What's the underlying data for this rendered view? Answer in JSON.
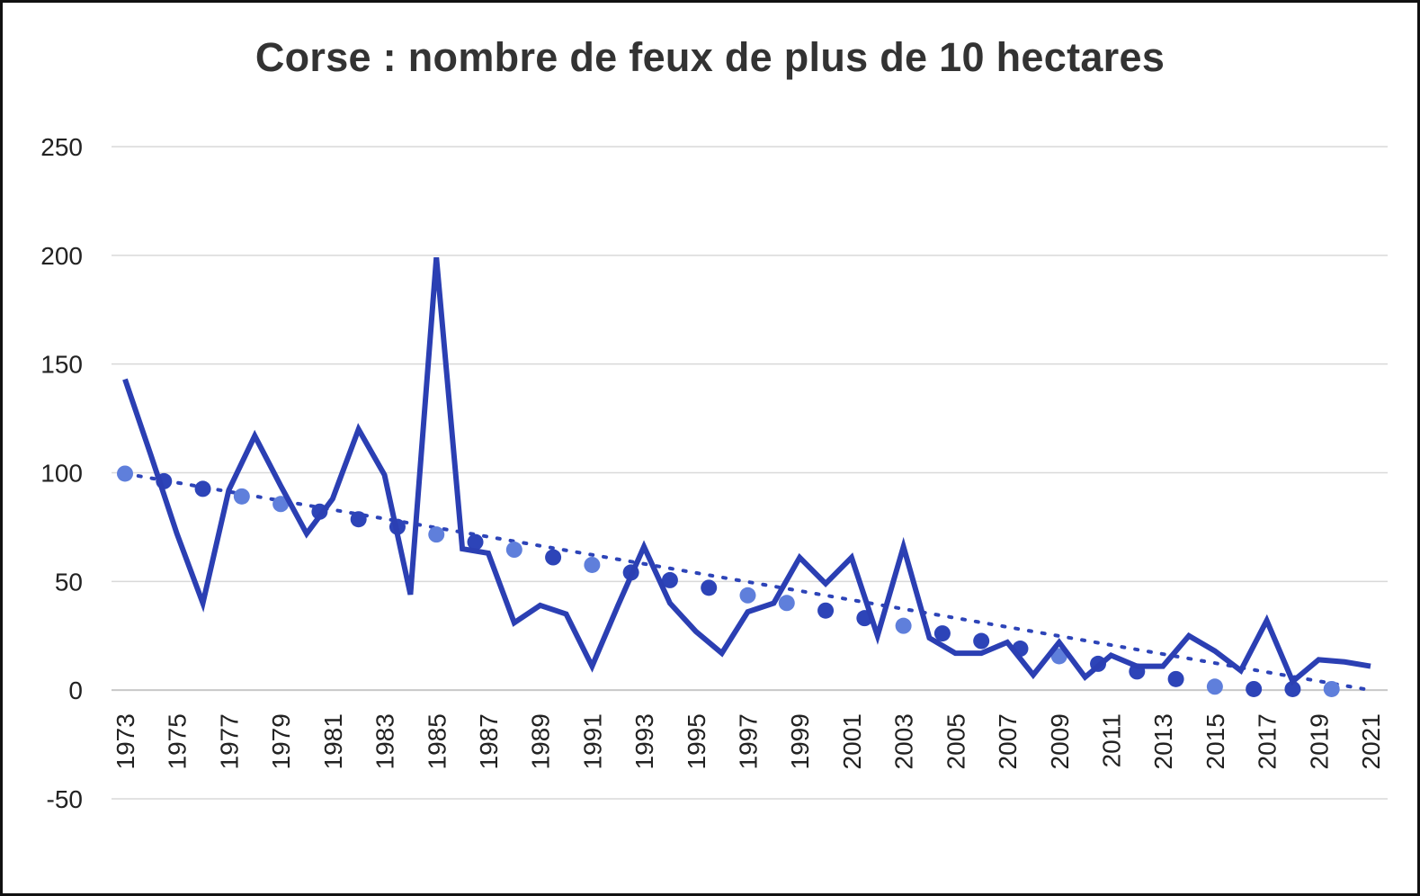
{
  "chart_data": {
    "type": "line",
    "title": "Corse : nombre de feux de plus de 10 hectares",
    "xlabel": "",
    "ylabel": "",
    "ylim": [
      -50,
      250
    ],
    "yticks": [
      -50,
      0,
      50,
      100,
      150,
      200,
      250
    ],
    "xlim": [
      1973,
      2021
    ],
    "xtick_labels": [
      "1973",
      "1975",
      "1977",
      "1979",
      "1981",
      "1983",
      "1985",
      "1987",
      "1989",
      "1991",
      "1993",
      "1995",
      "1997",
      "1999",
      "2001",
      "2003",
      "2005",
      "2007",
      "2009",
      "2011",
      "2013",
      "2015",
      "2017",
      "2019",
      "2021"
    ],
    "grid": true,
    "legend": "none",
    "series": [
      {
        "style": "line",
        "color": "#2B3FB3",
        "x": [
          1973,
          1974,
          1975,
          1976,
          1977,
          1978,
          1979,
          1980,
          1981,
          1982,
          1983,
          1984,
          1985,
          1986,
          1987,
          1988,
          1989,
          1990,
          1991,
          1992,
          1993,
          1994,
          1995,
          1996,
          1997,
          1998,
          1999,
          2000,
          2001,
          2002,
          2003,
          2004,
          2005,
          2006,
          2007,
          2008,
          2009,
          2010,
          2011,
          2012,
          2013,
          2014,
          2015,
          2016,
          2017,
          2018,
          2019,
          2020,
          2021
        ],
        "values": [
          143,
          108,
          72,
          40,
          92,
          117,
          94,
          72,
          88,
          120,
          99,
          44,
          199,
          65,
          63,
          31,
          39,
          35,
          11,
          39,
          66,
          40,
          27,
          17,
          36,
          40,
          61,
          49,
          61,
          25,
          66,
          24,
          17,
          17,
          22,
          7,
          22,
          6,
          16,
          11,
          11,
          25,
          18,
          9,
          32,
          4,
          14,
          13,
          11
        ]
      },
      {
        "style": "dotted-trend",
        "color": "#2D44B8",
        "dot_color_light": "#5F7FDB",
        "x": [
          1973,
          1974.5,
          1976,
          1977.5,
          1979,
          1980.5,
          1982,
          1983.5,
          1985,
          1986.5,
          1988,
          1989.5,
          1991,
          1992.5,
          1994,
          1995.5,
          1997,
          1998.5,
          2000,
          2001.5,
          2003,
          2004.5,
          2006,
          2007.5,
          2009,
          2010.5,
          2012,
          2013.5,
          2015,
          2016.5,
          2018,
          2019.5,
          2021
        ],
        "values": [
          99.6,
          96.1,
          92.6,
          89.1,
          85.6,
          82.1,
          78.6,
          75.1,
          71.6,
          68.1,
          64.6,
          61.1,
          57.6,
          54.1,
          50.6,
          47.1,
          43.6,
          40.1,
          36.6,
          33.1,
          29.6,
          26.1,
          22.6,
          19.1,
          15.6,
          12.1,
          8.6,
          5.1,
          1.6,
          -1.9,
          -5.4,
          -8.9,
          -12.4
        ]
      }
    ]
  }
}
